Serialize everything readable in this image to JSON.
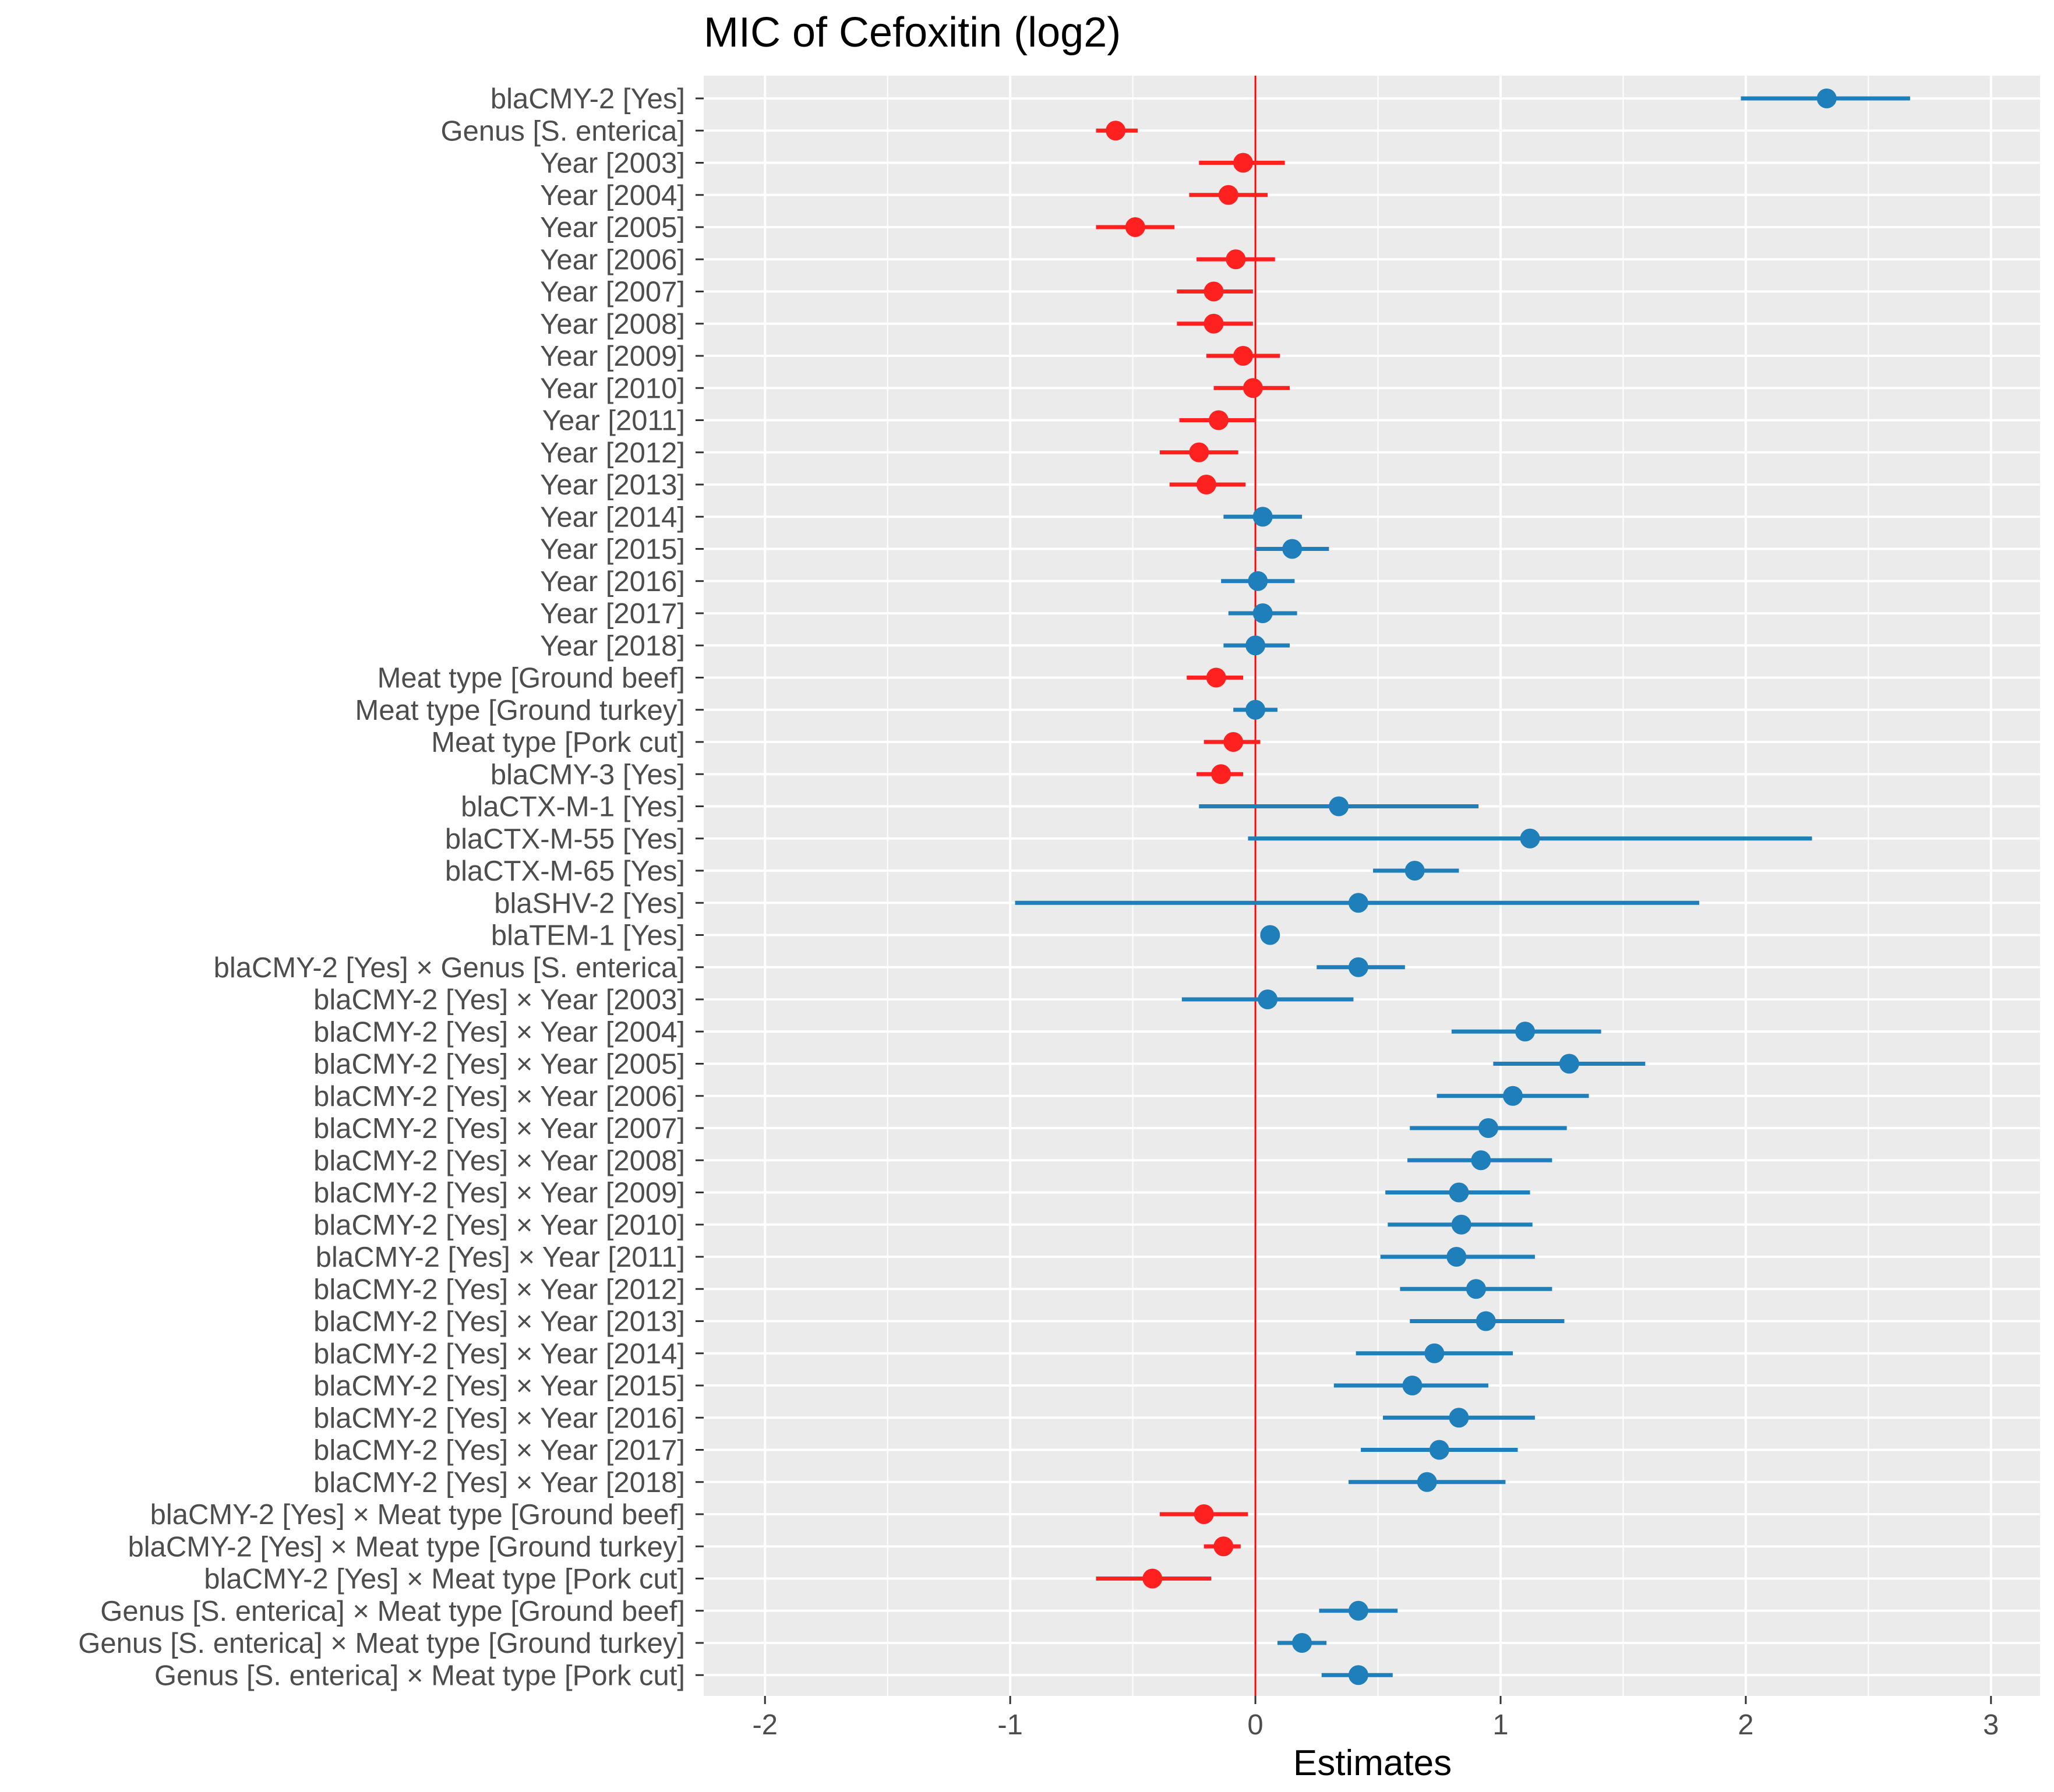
{
  "chart_data": {
    "type": "forest",
    "title": "MIC of Cefoxitin (log2)",
    "xlabel": "Estimates",
    "xlim": [
      -2.25,
      3.2
    ],
    "xticks": [
      -2,
      -1,
      0,
      1,
      2,
      3
    ],
    "xtick_labels": [
      "-2",
      "-1",
      "0",
      "1",
      "2",
      "3"
    ],
    "reference_line": 0,
    "colors": {
      "positive": "#1f7fba",
      "negative": "#ff2020",
      "reference": "#ff0000",
      "panel": "#ebebeb",
      "grid": "#ffffff"
    },
    "terms": [
      {
        "label": "blaCMY-2 [Yes]",
        "estimate": 2.33,
        "lower": 1.98,
        "upper": 2.67
      },
      {
        "label": "Genus [S. enterica]",
        "estimate": -0.57,
        "lower": -0.65,
        "upper": -0.48
      },
      {
        "label": "Year [2003]",
        "estimate": -0.05,
        "lower": -0.23,
        "upper": 0.12
      },
      {
        "label": "Year [2004]",
        "estimate": -0.11,
        "lower": -0.27,
        "upper": 0.05
      },
      {
        "label": "Year [2005]",
        "estimate": -0.49,
        "lower": -0.65,
        "upper": -0.33
      },
      {
        "label": "Year [2006]",
        "estimate": -0.08,
        "lower": -0.24,
        "upper": 0.08
      },
      {
        "label": "Year [2007]",
        "estimate": -0.17,
        "lower": -0.32,
        "upper": -0.01
      },
      {
        "label": "Year [2008]",
        "estimate": -0.17,
        "lower": -0.32,
        "upper": -0.01
      },
      {
        "label": "Year [2009]",
        "estimate": -0.05,
        "lower": -0.2,
        "upper": 0.1
      },
      {
        "label": "Year [2010]",
        "estimate": -0.01,
        "lower": -0.17,
        "upper": 0.14
      },
      {
        "label": "Year [2011]",
        "estimate": -0.15,
        "lower": -0.31,
        "upper": 0.0
      },
      {
        "label": "Year [2012]",
        "estimate": -0.23,
        "lower": -0.39,
        "upper": -0.07
      },
      {
        "label": "Year [2013]",
        "estimate": -0.2,
        "lower": -0.35,
        "upper": -0.04
      },
      {
        "label": "Year [2014]",
        "estimate": 0.03,
        "lower": -0.13,
        "upper": 0.19
      },
      {
        "label": "Year [2015]",
        "estimate": 0.15,
        "lower": 0.0,
        "upper": 0.3
      },
      {
        "label": "Year [2016]",
        "estimate": 0.01,
        "lower": -0.14,
        "upper": 0.16
      },
      {
        "label": "Year [2017]",
        "estimate": 0.03,
        "lower": -0.11,
        "upper": 0.17
      },
      {
        "label": "Year [2018]",
        "estimate": 0.0,
        "lower": -0.13,
        "upper": 0.14
      },
      {
        "label": "Meat type [Ground beef]",
        "estimate": -0.16,
        "lower": -0.28,
        "upper": -0.05
      },
      {
        "label": "Meat type [Ground turkey]",
        "estimate": 0.0,
        "lower": -0.09,
        "upper": 0.09
      },
      {
        "label": "Meat type [Pork cut]",
        "estimate": -0.09,
        "lower": -0.21,
        "upper": 0.02
      },
      {
        "label": "blaCMY-3 [Yes]",
        "estimate": -0.14,
        "lower": -0.24,
        "upper": -0.05
      },
      {
        "label": "blaCTX-M-1 [Yes]",
        "estimate": 0.34,
        "lower": -0.23,
        "upper": 0.91
      },
      {
        "label": "blaCTX-M-55 [Yes]",
        "estimate": 1.12,
        "lower": -0.03,
        "upper": 2.27
      },
      {
        "label": "blaCTX-M-65 [Yes]",
        "estimate": 0.65,
        "lower": 0.48,
        "upper": 0.83
      },
      {
        "label": "blaSHV-2 [Yes]",
        "estimate": 0.42,
        "lower": -0.98,
        "upper": 1.81
      },
      {
        "label": "blaTEM-1 [Yes]",
        "estimate": 0.06,
        "lower": 0.05,
        "upper": 0.07
      },
      {
        "label": "blaCMY-2 [Yes] × Genus [S. enterica]",
        "estimate": 0.42,
        "lower": 0.25,
        "upper": 0.61
      },
      {
        "label": "blaCMY-2 [Yes] × Year [2003]",
        "estimate": 0.05,
        "lower": -0.3,
        "upper": 0.4
      },
      {
        "label": "blaCMY-2 [Yes] × Year [2004]",
        "estimate": 1.1,
        "lower": 0.8,
        "upper": 1.41
      },
      {
        "label": "blaCMY-2 [Yes] × Year [2005]",
        "estimate": 1.28,
        "lower": 0.97,
        "upper": 1.59
      },
      {
        "label": "blaCMY-2 [Yes] × Year [2006]",
        "estimate": 1.05,
        "lower": 0.74,
        "upper": 1.36
      },
      {
        "label": "blaCMY-2 [Yes] × Year [2007]",
        "estimate": 0.95,
        "lower": 0.63,
        "upper": 1.27
      },
      {
        "label": "blaCMY-2 [Yes] × Year [2008]",
        "estimate": 0.92,
        "lower": 0.62,
        "upper": 1.21
      },
      {
        "label": "blaCMY-2 [Yes] × Year [2009]",
        "estimate": 0.83,
        "lower": 0.53,
        "upper": 1.12
      },
      {
        "label": "blaCMY-2 [Yes] × Year [2010]",
        "estimate": 0.84,
        "lower": 0.54,
        "upper": 1.13
      },
      {
        "label": "blaCMY-2 [Yes] × Year [2011]",
        "estimate": 0.82,
        "lower": 0.51,
        "upper": 1.14
      },
      {
        "label": "blaCMY-2 [Yes] × Year [2012]",
        "estimate": 0.9,
        "lower": 0.59,
        "upper": 1.21
      },
      {
        "label": "blaCMY-2 [Yes] × Year [2013]",
        "estimate": 0.94,
        "lower": 0.63,
        "upper": 1.26
      },
      {
        "label": "blaCMY-2 [Yes] × Year [2014]",
        "estimate": 0.73,
        "lower": 0.41,
        "upper": 1.05
      },
      {
        "label": "blaCMY-2 [Yes] × Year [2015]",
        "estimate": 0.64,
        "lower": 0.32,
        "upper": 0.95
      },
      {
        "label": "blaCMY-2 [Yes] × Year [2016]",
        "estimate": 0.83,
        "lower": 0.52,
        "upper": 1.14
      },
      {
        "label": "blaCMY-2 [Yes] × Year [2017]",
        "estimate": 0.75,
        "lower": 0.43,
        "upper": 1.07
      },
      {
        "label": "blaCMY-2 [Yes] × Year [2018]",
        "estimate": 0.7,
        "lower": 0.38,
        "upper": 1.02
      },
      {
        "label": "blaCMY-2 [Yes] × Meat type [Ground beef]",
        "estimate": -0.21,
        "lower": -0.39,
        "upper": -0.03
      },
      {
        "label": "blaCMY-2 [Yes] × Meat type [Ground turkey]",
        "estimate": -0.13,
        "lower": -0.21,
        "upper": -0.06
      },
      {
        "label": "blaCMY-2 [Yes] × Meat type [Pork cut]",
        "estimate": -0.42,
        "lower": -0.65,
        "upper": -0.18
      },
      {
        "label": "Genus [S. enterica] × Meat type [Ground beef]",
        "estimate": 0.42,
        "lower": 0.26,
        "upper": 0.58
      },
      {
        "label": "Genus [S. enterica] × Meat type [Ground turkey]",
        "estimate": 0.19,
        "lower": 0.09,
        "upper": 0.29
      },
      {
        "label": "Genus [S. enterica] × Meat type [Pork cut]",
        "estimate": 0.42,
        "lower": 0.27,
        "upper": 0.56
      }
    ]
  }
}
